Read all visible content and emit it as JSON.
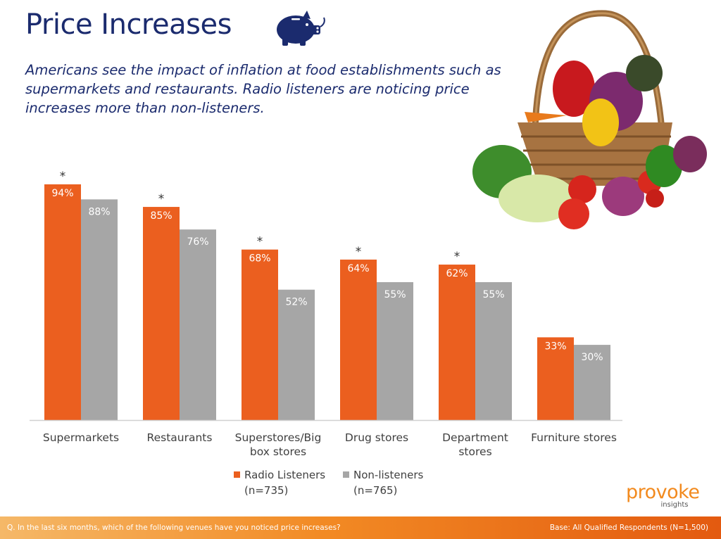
{
  "header": {
    "title": "Price Increases",
    "subtitle": "Americans see the impact of inflation at food establishments such as supermarkets and restaurants. Radio listeners are noticing price increases more than non-listeners.",
    "pig_icon": "piggy-bank-icon",
    "image": "vegetable-basket"
  },
  "chart_data": {
    "type": "bar",
    "categories": [
      "Supermarkets",
      "Restaurants",
      "Superstores/Big box stores",
      "Drug stores",
      "Department stores",
      "Furniture stores"
    ],
    "category_lines": [
      [
        "Supermarkets"
      ],
      [
        "Restaurants"
      ],
      [
        "Superstores/Big",
        "box stores"
      ],
      [
        "Drug stores"
      ],
      [
        "Department",
        "stores"
      ],
      [
        "Furniture stores"
      ]
    ],
    "series": [
      {
        "name": "Radio Listeners (n=735)",
        "color": "#eb5f1f",
        "values": [
          94,
          85,
          68,
          64,
          62,
          33
        ]
      },
      {
        "name": "Non-listeners (n=765)",
        "color": "#a6a6a6",
        "values": [
          88,
          76,
          52,
          55,
          55,
          30
        ]
      }
    ],
    "significance_marker": "*",
    "significant": [
      true,
      true,
      true,
      true,
      true,
      false
    ],
    "value_suffix": "%",
    "ylim": [
      0,
      100
    ],
    "grid": false,
    "legend_position": "bottom"
  },
  "legend": [
    {
      "label": "Radio Listeners",
      "n": "(n=735)",
      "color": "#eb5f1f"
    },
    {
      "label": "Non-listeners",
      "n": "(n=765)",
      "color": "#a6a6a6"
    }
  ],
  "logo": {
    "main": "provoke",
    "sub": "insights"
  },
  "footer": {
    "question": "Q. In the last six months, which of the following venues have you noticed price increases?",
    "base": "Base: All Qualified Respondents (N=1,500)"
  },
  "colors": {
    "title": "#1b2b6e",
    "accent": "#eb5f1f",
    "gray": "#a6a6a6",
    "logo": "#f28a1e"
  }
}
